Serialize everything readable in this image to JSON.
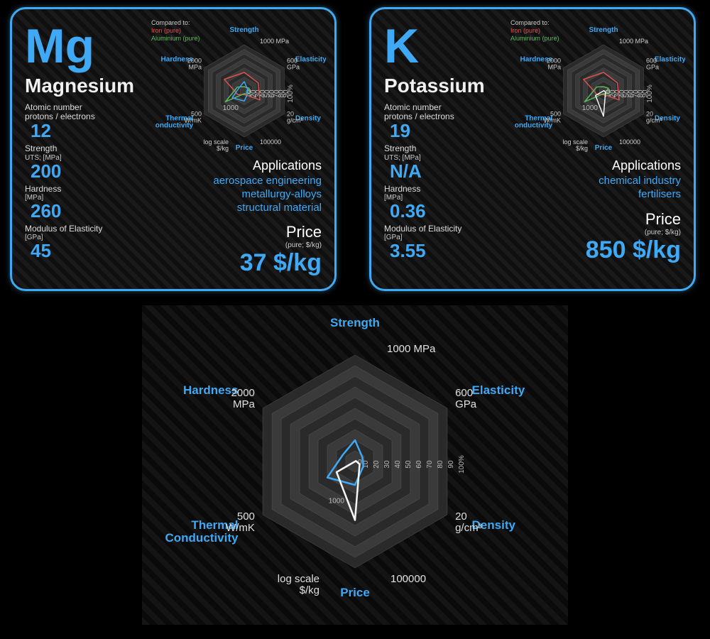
{
  "elements": [
    {
      "symbol": "Mg",
      "name": "Magnesium",
      "atomic_label": "Atomic number\nprotons / electrons",
      "atomic": "12",
      "strength_label": "Strength",
      "strength_sub": "UTS; [MPa]",
      "strength": "200",
      "hardness_label": "Hardness",
      "hardness_sub": "[MPa]",
      "hardness": "260",
      "modulus_label": "Modulus of Elasticity",
      "modulus_sub": "[GPa]",
      "modulus": "45",
      "apps_title": "Applications",
      "apps": "aerospace engineering\nmetallurgy-alloys\nstructural material",
      "price_title": "Price",
      "price_sub": "(pure; $/kg)",
      "price": "37 $/kg"
    },
    {
      "symbol": "K",
      "name": "Potassium",
      "atomic_label": "Atomic number\nprotons / electrons",
      "atomic": "19",
      "strength_label": "Strength",
      "strength_sub": "UTS; [MPa]",
      "strength": "N/A",
      "hardness_label": "Hardness",
      "hardness_sub": "[MPa]",
      "hardness": "0.36",
      "modulus_label": "Modulus of Elasticity",
      "modulus_sub": "[GPa]",
      "modulus": "3.55",
      "apps_title": "Applications",
      "apps": "chemical industry\nfertilisers",
      "price_title": "Price",
      "price_sub": "(pure; $/kg)",
      "price": "850 $/kg"
    }
  ],
  "compare": {
    "title": "Compared to:",
    "iron": "Iron (pure)",
    "alu": "Aluminium (pure)"
  },
  "radar": {
    "type": "radar",
    "axes": [
      {
        "name": "Strength",
        "unit": "1000 MPa"
      },
      {
        "name": "Elasticity",
        "unit": "600\nGPa"
      },
      {
        "name": "Density",
        "unit": "20\ng/cm³"
      },
      {
        "name": "Price",
        "unit": "100000",
        "unit2": "log scale\n$/kg"
      },
      {
        "name": "Thermal\nConductivity",
        "unit": "500\nW/mK"
      },
      {
        "name": "Hardness",
        "unit": "2000\nMPa"
      }
    ],
    "rings": [
      10,
      20,
      30,
      40,
      50,
      60,
      70,
      80,
      90,
      100
    ],
    "ring_fill": "#3a3a3a",
    "ring_fill_alt": "#2a2a2a",
    "series": {
      "mg": {
        "color": "#3fa9f5",
        "values": [
          20,
          8,
          9,
          22,
          30,
          13
        ]
      },
      "k": {
        "color": "#f5f5f5",
        "values": [
          0,
          1,
          5,
          55,
          20,
          0
        ]
      },
      "iron": {
        "color": "#d9534f",
        "values": [
          40,
          35,
          39,
          8,
          16,
          50
        ]
      },
      "alu": {
        "color": "#5cb85c",
        "values": [
          9,
          12,
          14,
          6,
          47,
          17
        ]
      }
    },
    "price_tick": "1000"
  }
}
